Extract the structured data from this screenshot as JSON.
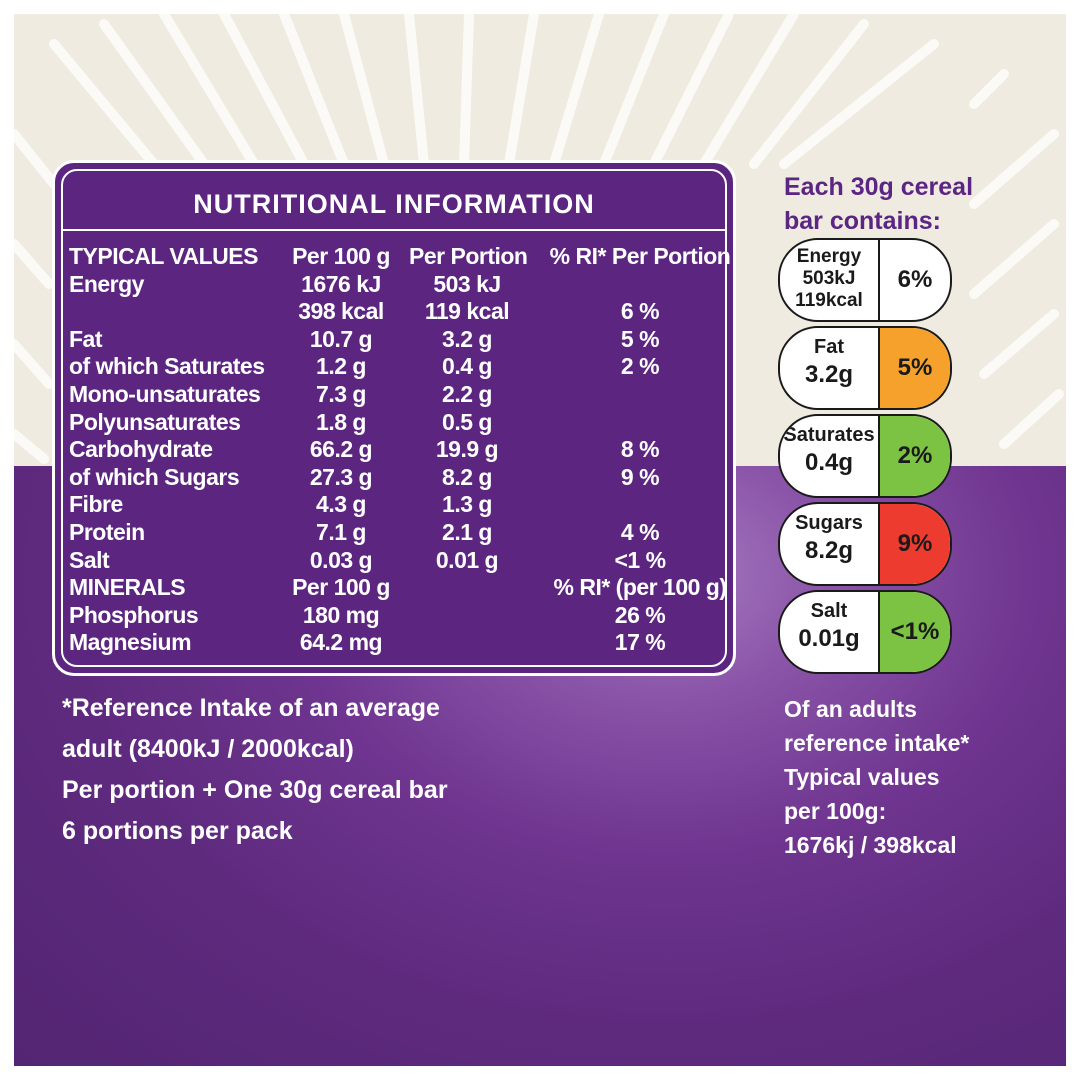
{
  "panel": {
    "title": "NUTRITIONAL INFORMATION",
    "rows": [
      [
        "TYPICAL VALUES",
        "Per 100 g",
        "Per Portion",
        "% RI* Per Portion"
      ],
      [
        "Energy",
        "1676 kJ",
        "503 kJ",
        ""
      ],
      [
        "",
        "398 kcal",
        "119 kcal",
        "6 %"
      ],
      [
        "Fat",
        "10.7 g",
        "3.2 g",
        "5 %"
      ],
      [
        "of which Saturates",
        "1.2 g",
        "0.4 g",
        "2 %"
      ],
      [
        "Mono-unsaturates",
        "7.3 g",
        "2.2 g",
        ""
      ],
      [
        "Polyunsaturates",
        "1.8 g",
        "0.5 g",
        ""
      ],
      [
        "Carbohydrate",
        "66.2 g",
        "19.9 g",
        "8 %"
      ],
      [
        "of which Sugars",
        "27.3 g",
        "8.2 g",
        "9 %"
      ],
      [
        "Fibre",
        "4.3 g",
        "1.3 g",
        ""
      ],
      [
        "Protein",
        "7.1 g",
        "2.1 g",
        "4 %"
      ],
      [
        "Salt",
        "0.03 g",
        "0.01 g",
        "<1 %"
      ],
      [
        "MINERALS",
        "Per 100 g",
        "",
        "% RI* (per 100 g)"
      ],
      [
        "Phosphorus",
        "180 mg",
        "",
        "26 %"
      ],
      [
        "Magnesium",
        "64.2 mg",
        "",
        "17 %"
      ]
    ]
  },
  "footnote": {
    "line1": "*Reference Intake of an average",
    "line2": "adult (8400kJ / 2000kcal)",
    "line3": "Per portion + One 30g cereal bar",
    "line4": "6 portions per pack"
  },
  "gda": {
    "heading_line1": "Each 30g cereal",
    "heading_line2": "bar contains:",
    "energy": {
      "name": "Energy",
      "kj": "503kJ",
      "kcal": "119kcal",
      "percent": "6%",
      "color": "#ffffff"
    },
    "items": [
      {
        "name": "Fat",
        "value": "3.2g",
        "percent": "5%",
        "color": "#f5a12c"
      },
      {
        "name": "Saturates",
        "value": "0.4g",
        "percent": "2%",
        "color": "#7cc243"
      },
      {
        "name": "Sugars",
        "value": "8.2g",
        "percent": "9%",
        "color": "#ee3b30"
      },
      {
        "name": "Salt",
        "value": "0.01g",
        "percent": "<1%",
        "color": "#7cc243"
      }
    ],
    "note_line1": "Of an adults",
    "note_line2": "reference intake*",
    "note_line3": "Typical values",
    "note_line4": "per 100g:",
    "note_line5": "1676kj / 398kcal"
  },
  "colors": {
    "brand_purple": "#5c2680",
    "cream": "#efebe1"
  }
}
